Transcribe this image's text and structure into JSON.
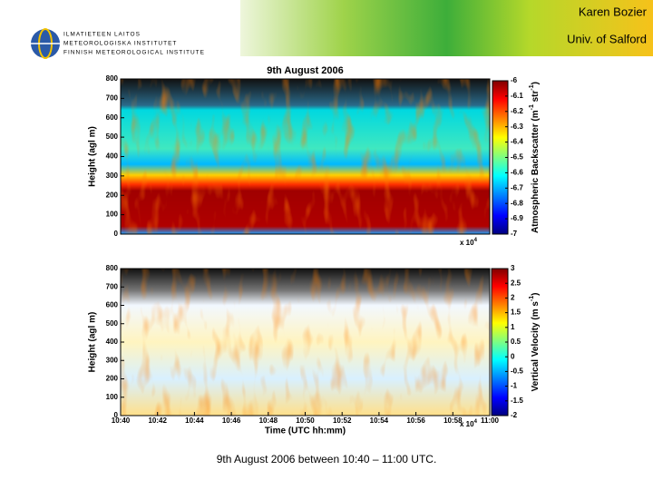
{
  "header": {
    "author": "Karen Bozier",
    "affiliation": "Univ. of Salford",
    "logo_lines": [
      "ILMATIETEEN LAITOS",
      "METEOROLOGISKA INSTITUTET",
      "FINNISH METEOROLOGICAL INSTITUTE"
    ]
  },
  "plots": [
    {
      "title": "9th August 2006",
      "ylabel": "Height (agl m)",
      "yticks": [
        0,
        100,
        200,
        300,
        400,
        500,
        600,
        700,
        800
      ],
      "xticks": [],
      "xlabel": null,
      "x_exponent": {
        "base": "x 10",
        "power": "4"
      },
      "colorbar": {
        "ticks": [
          -6,
          -6.1,
          -6.2,
          -6.3,
          -6.4,
          -6.5,
          -6.6,
          -6.7,
          -6.8,
          -6.9,
          -7
        ],
        "label": [
          "Atmospheric Backscatter (m",
          "-1",
          " str",
          "-1",
          ")"
        ]
      }
    },
    {
      "title": null,
      "ylabel": "Height (agl m)",
      "yticks": [
        0,
        100,
        200,
        300,
        400,
        500,
        600,
        700,
        800
      ],
      "xticks": [
        "10:40",
        "10:42",
        "10:44",
        "10:46",
        "10:48",
        "10:50",
        "10:52",
        "10:54",
        "10:56",
        "10:58",
        "11:00"
      ],
      "xlabel": "Time (UTC hh:mm)",
      "x_exponent": {
        "base": "x 10",
        "power": "4"
      },
      "colorbar": {
        "ticks": [
          3,
          2.5,
          2,
          1.5,
          1,
          0.5,
          0,
          -0.5,
          -1,
          -1.5,
          -2
        ],
        "label": [
          "Vertical Velocity (m s",
          "-1",
          ")"
        ]
      }
    }
  ],
  "caption": "9th August 2006 between 10:40 – 11:00 UTC."
}
